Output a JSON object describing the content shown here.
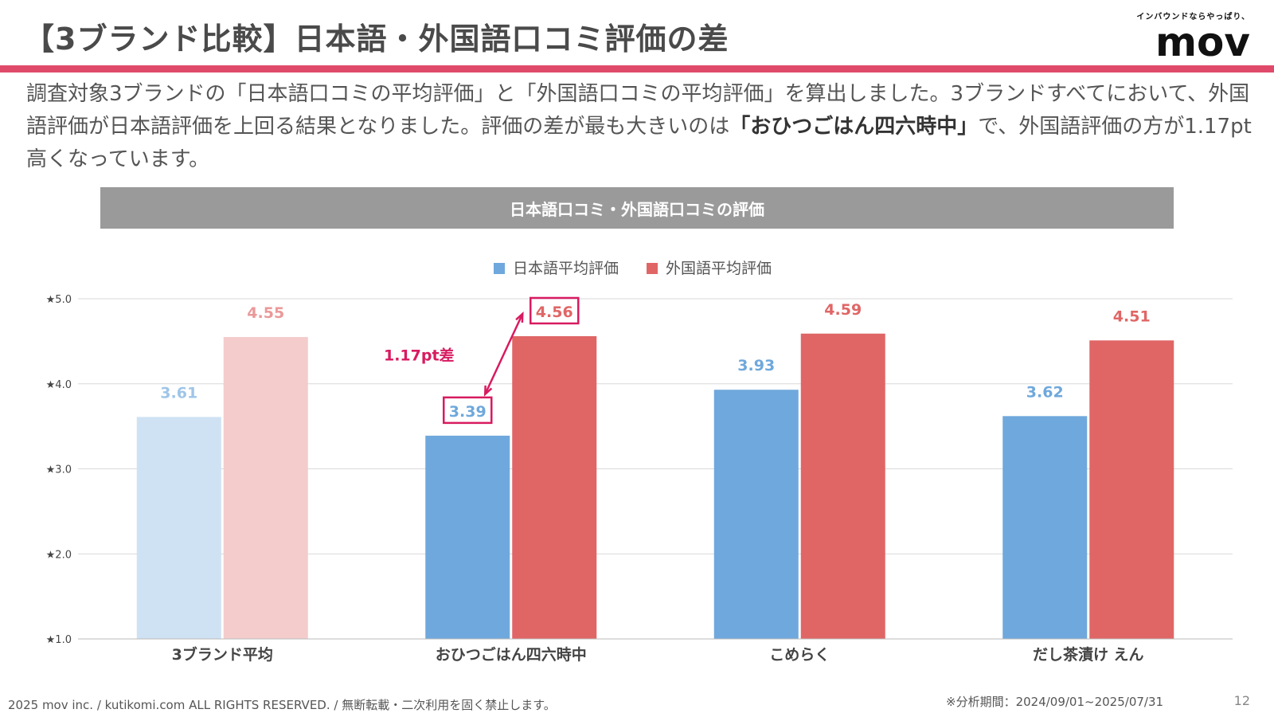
{
  "page": {
    "title": "【3ブランド比較】日本語・外国語口コミ評価の差",
    "logo_tagline": "インバウンドならやっぱり、",
    "logo_text": "mov",
    "description": {
      "part1": "調査対象3ブランドの「日本語口コミの平均評価」と「外国語口コミの平均評価」を算出しました。3ブランドすべてにおいて、外国語評価が日本語評価を上回る結果となりました。評価の差が最も大きいのは",
      "highlight": "「おひつごはん四六時中」",
      "part2": "で、外国語評価の方が1.17pt高くなっています。"
    },
    "footer_left": "2025 mov inc. / kutikomi.com ALL RIGHTS RESERVED. / 無断転載・二次利用を固く禁止します。",
    "footer_period": "※分析期間：2024/09/01~2025/07/31",
    "page_number": "12"
  },
  "colors": {
    "accent": "#e04a6a",
    "japanese": "#6fa8dc",
    "foreign": "#e06666",
    "japanese_light": "#cfe2f3",
    "foreign_light": "#f4cccc",
    "value_japanese": "#6fa8dc",
    "value_foreign": "#e06666",
    "highlight_box": "#d81b60"
  },
  "chart_data": {
    "type": "bar",
    "title": "日本語口コミ・外国語口コミの評価",
    "categories": [
      "3ブランド平均",
      "おひつごはん四六時中",
      "こめらく",
      "だし茶漬け えん"
    ],
    "series": [
      {
        "name": "日本語平均評価",
        "values": [
          3.61,
          3.39,
          3.93,
          3.62
        ]
      },
      {
        "name": "外国語平均評価",
        "values": [
          4.55,
          4.56,
          4.59,
          4.51
        ]
      }
    ],
    "value_labels": {
      "japanese": [
        "3.61",
        "3.39",
        "3.93",
        "3.62"
      ],
      "foreign": [
        "4.55",
        "4.56",
        "4.59",
        "4.51"
      ]
    },
    "ylim": [
      1.0,
      5.0
    ],
    "yticks": [
      "★1.0",
      "★2.0",
      "★3.0",
      "★4.0",
      "★5.0"
    ],
    "grid": true,
    "legend_position": "top-center",
    "annotation": {
      "text": "1.17pt差",
      "category_index": 1
    }
  }
}
